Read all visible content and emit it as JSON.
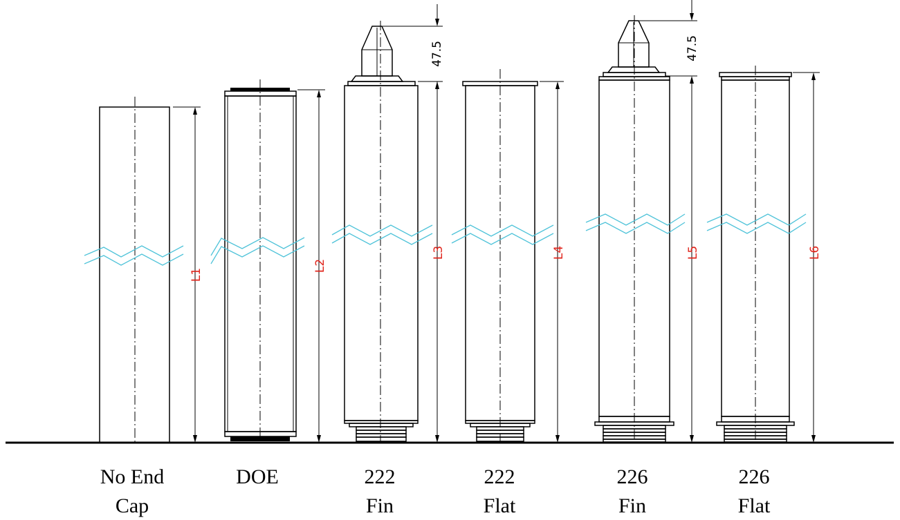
{
  "diagram": {
    "length_color": "#e0241b",
    "break_color": "#4fc3d9",
    "cartridges": [
      {
        "caption_line1": "No End",
        "caption_line2": "Cap",
        "length_label": "L1",
        "top_style": "none",
        "bottom_style": "none"
      },
      {
        "caption_line1": "DOE",
        "caption_line2": "",
        "length_label": "L2",
        "top_style": "gasket",
        "bottom_style": "gasket"
      },
      {
        "caption_line1": "222",
        "caption_line2": "Fin",
        "length_label": "L3",
        "top_style": "fin",
        "bottom_style": "222",
        "fin_dimension": "47.5"
      },
      {
        "caption_line1": "222",
        "caption_line2": "Flat",
        "length_label": "L4",
        "top_style": "flat",
        "bottom_style": "222"
      },
      {
        "caption_line1": "226",
        "caption_line2": "Fin",
        "length_label": "L5",
        "top_style": "fin",
        "bottom_style": "226",
        "fin_dimension": "47.5"
      },
      {
        "caption_line1": "226",
        "caption_line2": "Flat",
        "length_label": "L6",
        "top_style": "flat",
        "bottom_style": "226"
      }
    ]
  }
}
